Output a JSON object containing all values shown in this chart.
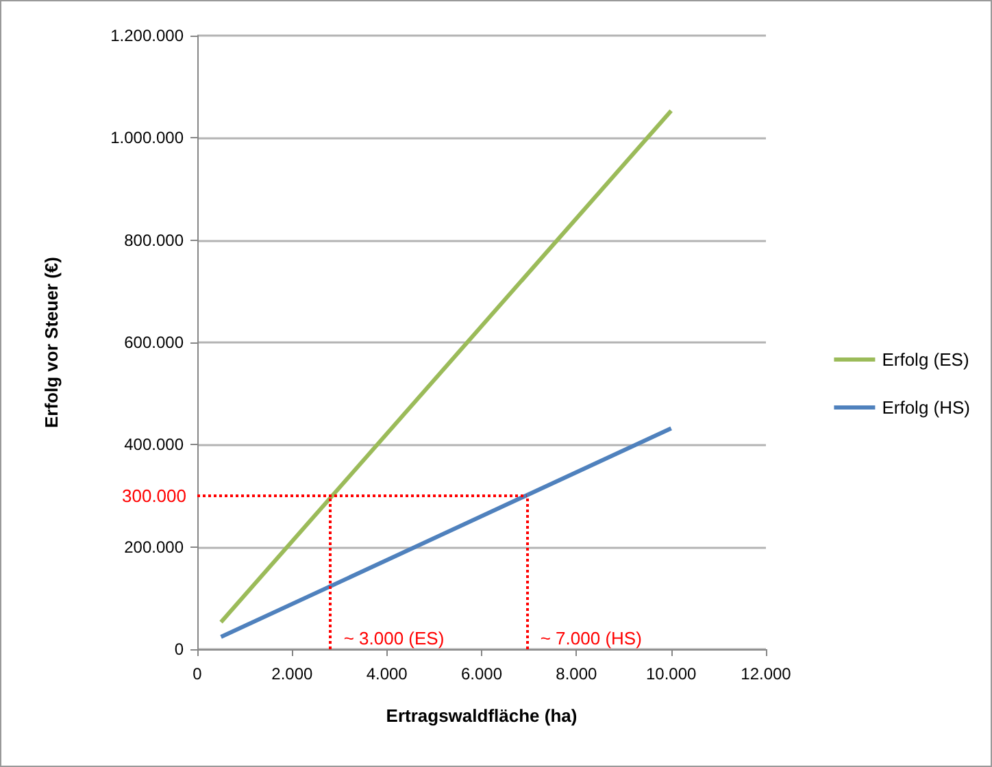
{
  "chart_data": {
    "type": "line",
    "xlabel": "Ertragswaldfläche (ha)",
    "ylabel": "Erfolg vor Steuer (€)",
    "x": [
      500,
      10000
    ],
    "series": [
      {
        "name": "Erfolg (ES)",
        "color": "#9bbb59",
        "values": [
          53000,
          1053000
        ]
      },
      {
        "name": "Erfolg (HS)",
        "color": "#4f81bd",
        "values": [
          24000,
          432000
        ]
      }
    ],
    "xlim": [
      0,
      12000
    ],
    "xticks": [
      0,
      {
        "value": 2000,
        "label": "2.000"
      },
      {
        "value": 4000,
        "label": "4.000"
      },
      {
        "value": 6000,
        "label": "6.000"
      },
      {
        "value": 8000,
        "label": "8.000"
      },
      {
        "value": 10000,
        "label": "10.000"
      },
      {
        "value": 12000,
        "label": "12.000"
      }
    ],
    "ylim": [
      0,
      1200000
    ],
    "yticks": [
      0,
      {
        "value": 200000,
        "label": "200.000"
      },
      {
        "value": 400000,
        "label": "400.000"
      },
      {
        "value": 600000,
        "label": "600.000"
      },
      {
        "value": 800000,
        "label": "800.000"
      },
      {
        "value": 1000000,
        "label": "1.000.000"
      },
      {
        "value": 1200000,
        "label": "1.200.000"
      }
    ],
    "grid": "y",
    "legend": "right",
    "marker": "none",
    "line_style": "solid",
    "ref_lines": [
      {
        "axis": "y",
        "value": 300000,
        "label": "300.000",
        "color": "#ff0000",
        "line_style": "dotted"
      },
      {
        "axis": "x",
        "value": 2800,
        "label": "~ 3.000 (ES)",
        "color": "#ff0000",
        "line_style": "dotted"
      },
      {
        "axis": "x",
        "value": 6950,
        "label": "~ 7.000 (HS)",
        "color": "#ff0000",
        "line_style": "dotted"
      }
    ]
  }
}
